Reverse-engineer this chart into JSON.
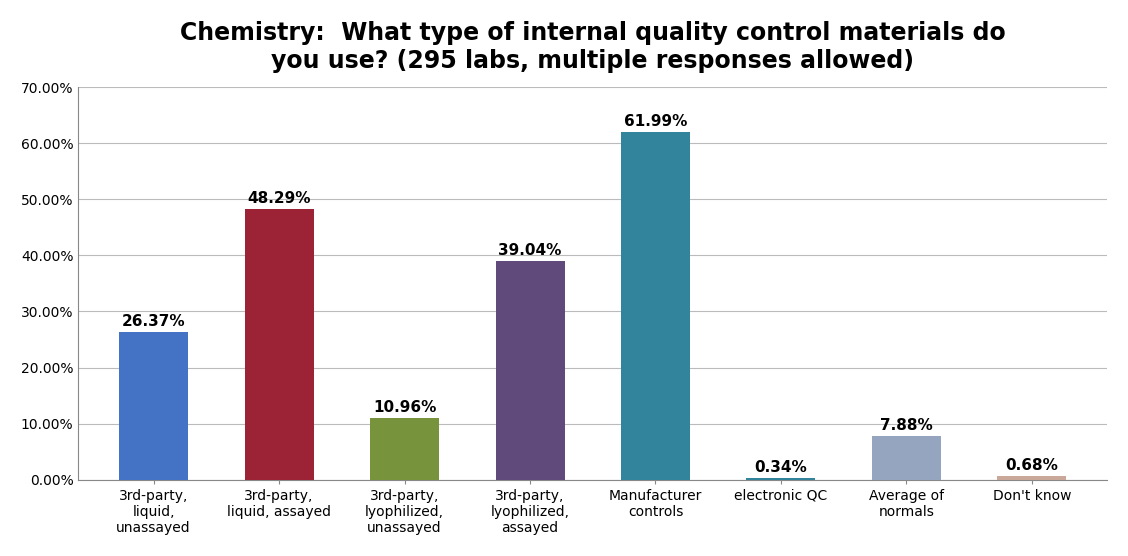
{
  "title": "Chemistry:  What type of internal quality control materials do\nyou use? (295 labs, multiple responses allowed)",
  "categories": [
    "3rd-party,\nliquid,\nunassayed",
    "3rd-party,\nliquid, assayed",
    "3rd-party,\nlyophilized,\nunassayed",
    "3rd-party,\nlyophilized,\nassayed",
    "Manufacturer\ncontrols",
    "electronic QC",
    "Average of\nnormals",
    "Don't know"
  ],
  "values": [
    0.2637,
    0.4829,
    0.1096,
    0.3904,
    0.6199,
    0.0034,
    0.0788,
    0.0068
  ],
  "labels": [
    "26.37%",
    "48.29%",
    "10.96%",
    "39.04%",
    "61.99%",
    "0.34%",
    "7.88%",
    "0.68%"
  ],
  "colors": [
    "#4472C4",
    "#9B2335",
    "#77933C",
    "#604A7B",
    "#31849B",
    "#31849B",
    "#95A5C0",
    "#C9A89A"
  ],
  "ylim": [
    0.0,
    0.7
  ],
  "yticks": [
    0.0,
    0.1,
    0.2,
    0.3,
    0.4,
    0.5,
    0.6,
    0.7
  ],
  "ytick_labels": [
    "0.00%",
    "10.00%",
    "20.00%",
    "30.00%",
    "40.00%",
    "50.00%",
    "60.00%",
    "70.00%"
  ],
  "title_fontsize": 17,
  "bar_label_fontsize": 11,
  "tick_label_fontsize": 10,
  "background_color": "#FFFFFF",
  "grid_color": "#BBBBBB",
  "bar_width": 0.55
}
